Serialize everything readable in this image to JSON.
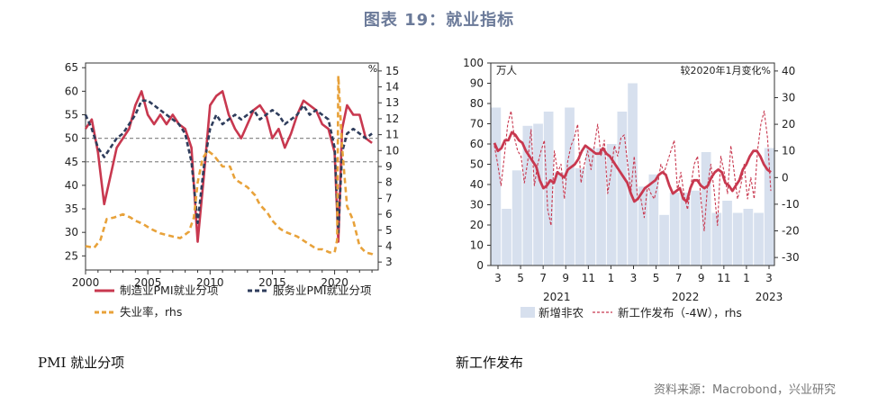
{
  "header": {
    "title": "图表 19：就业指标"
  },
  "captions": {
    "left": "PMI 就业分项",
    "right": "新工作发布"
  },
  "footer": {
    "source": "资料来源：Macrobond，兴业研究"
  },
  "colors": {
    "red": "#c8384f",
    "navy": "#2f3d5c",
    "orange": "#e8a23a",
    "bar": "#d7e0ee",
    "grid": "#8c8c8c"
  },
  "chart_data": [
    {
      "type": "line",
      "title": "",
      "y_left": {
        "ylim": [
          22,
          66
        ],
        "ticks": [
          25,
          30,
          35,
          40,
          45,
          50,
          55,
          60,
          65
        ]
      },
      "y_right": {
        "label": "%",
        "ylim": [
          2.5,
          15.5
        ],
        "ticks": [
          3,
          4,
          5,
          6,
          7,
          8,
          9,
          10,
          11,
          12,
          13,
          14,
          15
        ]
      },
      "x": {
        "xlim": [
          2000,
          2023.5
        ],
        "ticks": [
          2000,
          2005,
          2010,
          2015,
          2020
        ]
      },
      "reference_lines": [
        50,
        45
      ],
      "series": [
        {
          "name": "制造业PMI就业分项",
          "axis": "left",
          "style": "solid",
          "points": [
            [
              2000,
              52
            ],
            [
              2000.5,
              54
            ],
            [
              2001,
              47
            ],
            [
              2001.5,
              36
            ],
            [
              2002,
              42
            ],
            [
              2002.5,
              48
            ],
            [
              2003,
              50
            ],
            [
              2003.5,
              52
            ],
            [
              2004,
              57
            ],
            [
              2004.5,
              60
            ],
            [
              2005,
              55
            ],
            [
              2005.5,
              53
            ],
            [
              2006,
              55
            ],
            [
              2006.5,
              53
            ],
            [
              2007,
              55
            ],
            [
              2007.5,
              53
            ],
            [
              2008,
              52
            ],
            [
              2008.5,
              48
            ],
            [
              2009,
              28
            ],
            [
              2009.5,
              42
            ],
            [
              2010,
              57
            ],
            [
              2010.5,
              59
            ],
            [
              2011,
              60
            ],
            [
              2011.5,
              55
            ],
            [
              2012,
              52
            ],
            [
              2012.5,
              50
            ],
            [
              2013,
              53
            ],
            [
              2013.5,
              56
            ],
            [
              2014,
              57
            ],
            [
              2014.5,
              55
            ],
            [
              2015,
              50
            ],
            [
              2015.5,
              52
            ],
            [
              2016,
              48
            ],
            [
              2016.5,
              51
            ],
            [
              2017,
              55
            ],
            [
              2017.5,
              58
            ],
            [
              2018,
              57
            ],
            [
              2018.5,
              56
            ],
            [
              2019,
              53
            ],
            [
              2019.5,
              52
            ],
            [
              2020,
              47
            ],
            [
              2020.3,
              28
            ],
            [
              2020.6,
              52
            ],
            [
              2021,
              57
            ],
            [
              2021.5,
              55
            ],
            [
              2022,
              55
            ],
            [
              2022.5,
              50
            ],
            [
              2023,
              49
            ]
          ]
        },
        {
          "name": "服务业PMI就业分项",
          "axis": "left",
          "style": "dashed",
          "points": [
            [
              2000,
              55
            ],
            [
              2000.5,
              52
            ],
            [
              2001,
              48
            ],
            [
              2001.5,
              46
            ],
            [
              2002,
              48
            ],
            [
              2002.5,
              50
            ],
            [
              2003,
              51
            ],
            [
              2003.5,
              53
            ],
            [
              2004,
              55
            ],
            [
              2004.5,
              58
            ],
            [
              2005,
              58
            ],
            [
              2005.5,
              57
            ],
            [
              2006,
              56
            ],
            [
              2006.5,
              55
            ],
            [
              2007,
              54
            ],
            [
              2007.5,
              53
            ],
            [
              2008,
              51
            ],
            [
              2008.5,
              45
            ],
            [
              2009,
              32
            ],
            [
              2009.5,
              44
            ],
            [
              2010,
              52
            ],
            [
              2010.5,
              55
            ],
            [
              2011,
              53
            ],
            [
              2011.5,
              54
            ],
            [
              2012,
              55
            ],
            [
              2012.5,
              54
            ],
            [
              2013,
              55
            ],
            [
              2013.5,
              56
            ],
            [
              2014,
              54
            ],
            [
              2014.5,
              55
            ],
            [
              2015,
              56
            ],
            [
              2015.5,
              55
            ],
            [
              2016,
              53
            ],
            [
              2016.5,
              54
            ],
            [
              2017,
              55
            ],
            [
              2017.5,
              57
            ],
            [
              2018,
              55
            ],
            [
              2018.5,
              56
            ],
            [
              2019,
              55
            ],
            [
              2019.5,
              54
            ],
            [
              2020,
              48
            ],
            [
              2020.3,
              30
            ],
            [
              2020.6,
              47
            ],
            [
              2021,
              51
            ],
            [
              2021.5,
              52
            ],
            [
              2022,
              51
            ],
            [
              2022.5,
              50
            ],
            [
              2023,
              51
            ]
          ]
        },
        {
          "name": "失业率，rhs",
          "axis": "right",
          "style": "dashed",
          "points": [
            [
              2000,
              4
            ],
            [
              2000.7,
              3.9
            ],
            [
              2001.2,
              4.4
            ],
            [
              2001.7,
              5.7
            ],
            [
              2002.3,
              5.8
            ],
            [
              2003,
              6
            ],
            [
              2003.6,
              5.8
            ],
            [
              2004,
              5.6
            ],
            [
              2004.6,
              5.4
            ],
            [
              2005.2,
              5.1
            ],
            [
              2006,
              4.8
            ],
            [
              2007,
              4.6
            ],
            [
              2007.6,
              4.5
            ],
            [
              2008.3,
              4.9
            ],
            [
              2008.7,
              5.8
            ],
            [
              2009,
              8
            ],
            [
              2009.4,
              9.5
            ],
            [
              2009.8,
              10
            ],
            [
              2010.3,
              9.7
            ],
            [
              2011,
              9
            ],
            [
              2011.6,
              9
            ],
            [
              2012,
              8.2
            ],
            [
              2013,
              7.7
            ],
            [
              2013.6,
              7.2
            ],
            [
              2014,
              6.6
            ],
            [
              2014.6,
              6.1
            ],
            [
              2015,
              5.6
            ],
            [
              2015.6,
              5.1
            ],
            [
              2016,
              4.9
            ],
            [
              2017,
              4.6
            ],
            [
              2017.6,
              4.3
            ],
            [
              2018,
              4.1
            ],
            [
              2018.6,
              3.8
            ],
            [
              2019,
              3.8
            ],
            [
              2019.6,
              3.6
            ],
            [
              2020,
              3.6
            ],
            [
              2020.2,
              4.4
            ],
            [
              2020.3,
              14.7
            ],
            [
              2020.6,
              10.2
            ],
            [
              2021,
              6.5
            ],
            [
              2021.5,
              5.6
            ],
            [
              2022,
              4
            ],
            [
              2022.5,
              3.6
            ],
            [
              2023,
              3.5
            ],
            [
              2023.2,
              3.4
            ]
          ]
        }
      ],
      "legend": [
        {
          "label": "制造业PMI就业分项",
          "style": "solid",
          "color": "#c8384f"
        },
        {
          "label": "服务业PMI就业分项",
          "style": "dashed",
          "color": "#2f3d5c"
        },
        {
          "label": "失业率，rhs",
          "style": "dashed",
          "color": "#e8a23a"
        }
      ]
    },
    {
      "type": "bar",
      "title": "",
      "y_left": {
        "label": "万人",
        "ylim": [
          0,
          100
        ],
        "ticks": [
          0,
          10,
          20,
          30,
          40,
          50,
          60,
          70,
          80,
          90,
          100
        ]
      },
      "y_right": {
        "label": "较2020年1月变化%",
        "ylim": [
          -33,
          43
        ],
        "ticks": [
          40,
          30,
          20,
          10,
          0,
          -10,
          -20,
          -30
        ]
      },
      "x": {
        "month_labels": [
          "3",
          "5",
          "7",
          "9",
          "11",
          "1",
          "3",
          "5",
          "7",
          "9",
          "11",
          "1",
          "3"
        ],
        "year_labels": [
          "2021",
          "2022",
          "2023"
        ]
      },
      "bars": {
        "name": "新增非农",
        "values": [
          78,
          28,
          47,
          69,
          70,
          76,
          46,
          78,
          48,
          58,
          58,
          60,
          76,
          90,
          39,
          45,
          25,
          36,
          36,
          37,
          56,
          26,
          32,
          26,
          28,
          26,
          58
        ]
      },
      "series": [
        {
          "name": "新工作发布（-4W），rhs",
          "axis": "right",
          "style": "dashed",
          "values": [
            12,
            5,
            -3,
            8,
            20,
            25,
            15,
            10,
            8,
            -2,
            6,
            18,
            -3,
            5,
            10,
            14,
            -12,
            -18,
            10,
            2,
            5,
            -8,
            6,
            12,
            15,
            20,
            -2,
            5,
            10,
            3,
            12,
            20,
            8,
            14,
            -6,
            2,
            12,
            8,
            15,
            16,
            5,
            -5,
            8,
            -8,
            -8,
            -15,
            -3,
            -6,
            -8,
            -3,
            5,
            2,
            6,
            10,
            14,
            -5,
            2,
            -7,
            -12,
            -3,
            5,
            8,
            -8,
            -20,
            -3,
            5,
            -5,
            -18,
            8,
            2,
            -6,
            12,
            2,
            -8,
            -3,
            5,
            -8,
            0,
            -8,
            10,
            20,
            25,
            15,
            -5
          ]
        },
        {
          "name": "",
          "axis": "right",
          "style": "solid",
          "values": [
            13,
            10,
            11,
            14,
            14,
            17,
            16,
            14,
            13,
            10,
            8,
            6,
            4,
            -1,
            -4,
            -3,
            -1,
            -2,
            2,
            1,
            0,
            3,
            4,
            5,
            7,
            10,
            12,
            11,
            10,
            9,
            9,
            11,
            9,
            8,
            6,
            4,
            2,
            0,
            -2,
            -6,
            -9,
            -8,
            -6,
            -4,
            -3,
            -2,
            -1,
            1,
            2,
            1,
            -3,
            -6,
            -5,
            -4,
            -8,
            -9,
            -4,
            -1,
            -1,
            -3,
            -4,
            -3,
            0,
            2,
            3,
            2,
            -2,
            -3,
            -5,
            -3,
            -1,
            3,
            5,
            8,
            10,
            10,
            8,
            5,
            3,
            2
          ]
        }
      ],
      "legend": [
        {
          "label": "新增非农",
          "style": "bar",
          "color": "#d7e0ee"
        },
        {
          "label": "新工作发布（-4W），rhs",
          "style": "dashed",
          "color": "#c8384f"
        }
      ]
    }
  ]
}
